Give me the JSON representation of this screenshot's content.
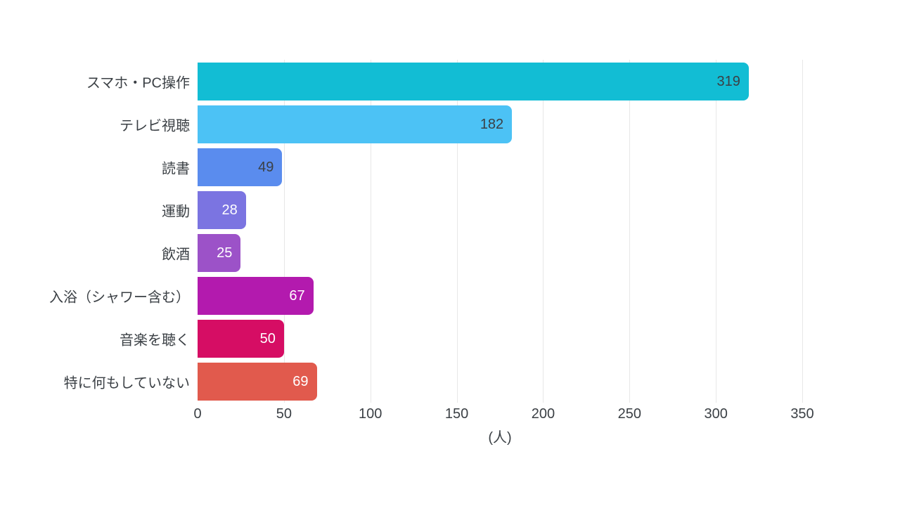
{
  "chart_data": {
    "type": "bar",
    "orientation": "horizontal",
    "title": "",
    "xlabel": "(人)",
    "ylabel": "",
    "xlim": [
      0,
      350
    ],
    "xticks": [
      0,
      50,
      100,
      150,
      200,
      250,
      300,
      350
    ],
    "grid": true,
    "legend": false,
    "categories": [
      "スマホ・PC操作",
      "テレビ視聴",
      "読書",
      "運動",
      "飲酒",
      "入浴（シャワー含む）",
      "音楽を聴く",
      "特に何もしていない"
    ],
    "values": [
      319,
      182,
      49,
      28,
      25,
      67,
      50,
      69
    ],
    "bar_colors": [
      "#12bdd4",
      "#4cc2f5",
      "#5a8cee",
      "#7b74e1",
      "#9c52c8",
      "#b31aae",
      "#d60d64",
      "#e15a4d"
    ],
    "value_label_colors": [
      "#3b4045",
      "#3b4045",
      "#3b4045",
      "#ffffff",
      "#ffffff",
      "#ffffff",
      "#ffffff",
      "#ffffff"
    ]
  },
  "colors": {
    "text": "#3b4045",
    "gridline": "#e7e7e7",
    "background": "#ffffff"
  }
}
